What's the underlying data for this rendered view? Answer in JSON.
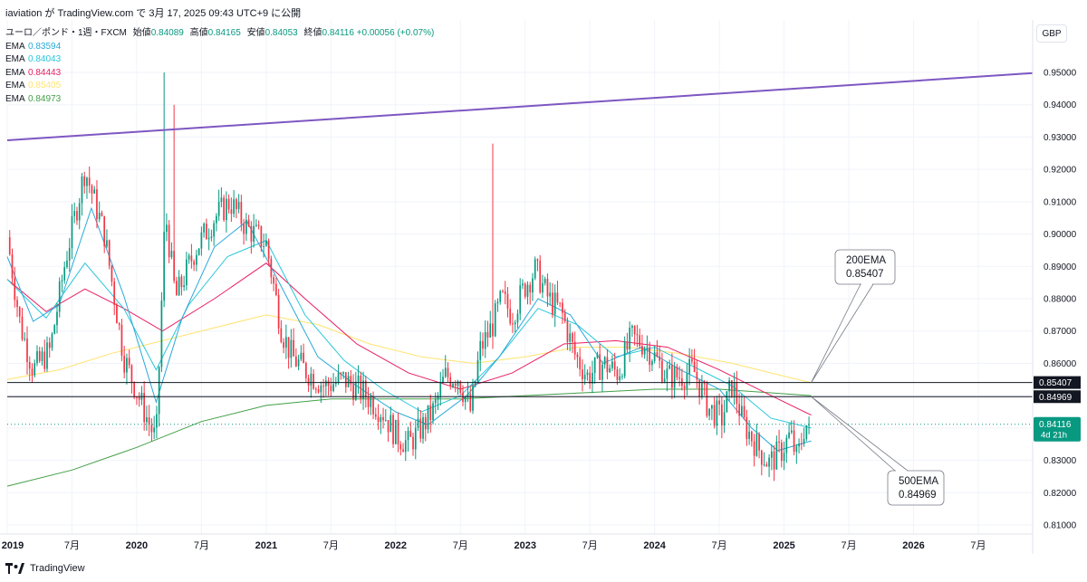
{
  "header": {
    "attribution": "iaviation が TradingView.com で 3月 17, 2025 09:43 UTC+9 に公開"
  },
  "legend": {
    "symbol": "ユーロ／ポンド・1週・FXCM",
    "ohlc": [
      {
        "label": "始値",
        "value": "0.84089"
      },
      {
        "label": "高値",
        "value": "0.84165"
      },
      {
        "label": "安値",
        "value": "0.84053"
      },
      {
        "label": "終値",
        "value": "0.84116"
      }
    ],
    "change": "+0.00056 (+0.07%)",
    "emas": [
      {
        "label": "EMA",
        "value": "0.83594",
        "color": "#29a9d9"
      },
      {
        "label": "EMA",
        "value": "0.84043",
        "color": "#26c6da"
      },
      {
        "label": "EMA",
        "value": "0.84443",
        "color": "#e91e63"
      },
      {
        "label": "EMA",
        "value": "0.85405",
        "color": "#ffe36e"
      },
      {
        "label": "EMA",
        "value": "0.84973",
        "color": "#43a047"
      }
    ]
  },
  "currency": "GBP",
  "footer": {
    "brand": "TradingView"
  },
  "colors": {
    "up": "#089981",
    "down": "#f23645",
    "trendline": "#7e57c2",
    "ema20": "#29a9d9",
    "ema50": "#26c6da",
    "ema100": "#e91e63",
    "ema200": "#ffe36e",
    "ema500": "#43a047",
    "level": "#131722"
  },
  "chart_data": {
    "type": "candlestick",
    "interval": "1週",
    "yaxis": {
      "min": 0.805,
      "max": 0.96,
      "ticks": [
        "0.81000",
        "0.82000",
        "0.83000",
        "0.84000",
        "0.85000",
        "0.86000",
        "0.87000",
        "0.88000",
        "0.89000",
        "0.90000",
        "0.91000",
        "0.92000",
        "0.93000",
        "0.94000",
        "0.95000"
      ]
    },
    "xaxis": {
      "start": 2019.0,
      "end": 2027.0,
      "ticks": [
        {
          "t": 2019.0,
          "label": "2019"
        },
        {
          "t": 2019.5,
          "label": "7月"
        },
        {
          "t": 2020.0,
          "label": "2020"
        },
        {
          "t": 2020.5,
          "label": "7月"
        },
        {
          "t": 2021.0,
          "label": "2021"
        },
        {
          "t": 2021.5,
          "label": "7月"
        },
        {
          "t": 2022.0,
          "label": "2022"
        },
        {
          "t": 2022.5,
          "label": "7月"
        },
        {
          "t": 2023.0,
          "label": "2023"
        },
        {
          "t": 2023.5,
          "label": "7月"
        },
        {
          "t": 2024.0,
          "label": "2024"
        },
        {
          "t": 2024.5,
          "label": "7月"
        },
        {
          "t": 2025.0,
          "label": "2025"
        },
        {
          "t": 2025.5,
          "label": "7月"
        },
        {
          "t": 2026.0,
          "label": "2026"
        },
        {
          "t": 2026.5,
          "label": "7月"
        }
      ]
    },
    "close_path": [
      [
        2019.0,
        0.899
      ],
      [
        2019.1,
        0.872
      ],
      [
        2019.2,
        0.858
      ],
      [
        2019.33,
        0.864
      ],
      [
        2019.45,
        0.892
      ],
      [
        2019.6,
        0.92
      ],
      [
        2019.75,
        0.9
      ],
      [
        2019.9,
        0.862
      ],
      [
        2020.05,
        0.846
      ],
      [
        2020.15,
        0.836
      ],
      [
        2020.22,
        0.907
      ],
      [
        2020.3,
        0.88
      ],
      [
        2020.45,
        0.895
      ],
      [
        2020.6,
        0.905
      ],
      [
        2020.72,
        0.91
      ],
      [
        2020.85,
        0.902
      ],
      [
        2021.0,
        0.897
      ],
      [
        2021.12,
        0.87
      ],
      [
        2021.2,
        0.862
      ],
      [
        2021.3,
        0.858
      ],
      [
        2021.45,
        0.853
      ],
      [
        2021.6,
        0.855
      ],
      [
        2021.75,
        0.851
      ],
      [
        2021.9,
        0.845
      ],
      [
        2022.0,
        0.838
      ],
      [
        2022.1,
        0.835
      ],
      [
        2022.2,
        0.84
      ],
      [
        2022.3,
        0.846
      ],
      [
        2022.38,
        0.856
      ],
      [
        2022.48,
        0.856
      ],
      [
        2022.58,
        0.845
      ],
      [
        2022.65,
        0.864
      ],
      [
        2022.75,
        0.872
      ],
      [
        2022.82,
        0.88
      ],
      [
        2022.9,
        0.875
      ],
      [
        2023.0,
        0.884
      ],
      [
        2023.08,
        0.889
      ],
      [
        2023.18,
        0.88
      ],
      [
        2023.28,
        0.876
      ],
      [
        2023.38,
        0.863
      ],
      [
        2023.48,
        0.856
      ],
      [
        2023.6,
        0.86
      ],
      [
        2023.72,
        0.857
      ],
      [
        2023.82,
        0.868
      ],
      [
        2023.92,
        0.866
      ],
      [
        2024.0,
        0.862
      ],
      [
        2024.1,
        0.856
      ],
      [
        2024.2,
        0.856
      ],
      [
        2024.3,
        0.858
      ],
      [
        2024.42,
        0.846
      ],
      [
        2024.52,
        0.843
      ],
      [
        2024.6,
        0.854
      ],
      [
        2024.68,
        0.842
      ],
      [
        2024.78,
        0.835
      ],
      [
        2024.88,
        0.829
      ],
      [
        2024.98,
        0.833
      ],
      [
        2025.05,
        0.838
      ],
      [
        2025.1,
        0.83
      ],
      [
        2025.16,
        0.841
      ],
      [
        2025.21,
        0.841
      ]
    ],
    "ohlc_last": {
      "open": 0.84089,
      "high": 0.84165,
      "low": 0.84053,
      "close": 0.84116
    },
    "spikes": [
      [
        2020.22,
        0.95
      ],
      [
        2022.75,
        0.928
      ],
      [
        2020.28,
        0.94
      ]
    ],
    "trendline": {
      "from": [
        2019.0,
        0.929
      ],
      "to": [
        2027.0,
        0.95
      ]
    },
    "ema_paths": {
      "ema200": [
        [
          2019.0,
          0.855
        ],
        [
          2019.4,
          0.858
        ],
        [
          2019.8,
          0.863
        ],
        [
          2020.2,
          0.867
        ],
        [
          2020.6,
          0.871
        ],
        [
          2021.0,
          0.875
        ],
        [
          2021.4,
          0.872
        ],
        [
          2021.8,
          0.866
        ],
        [
          2022.2,
          0.862
        ],
        [
          2022.6,
          0.86
        ],
        [
          2023.0,
          0.862
        ],
        [
          2023.4,
          0.865
        ],
        [
          2023.8,
          0.865
        ],
        [
          2024.2,
          0.863
        ],
        [
          2024.6,
          0.86
        ],
        [
          2024.9,
          0.857
        ],
        [
          2025.21,
          0.854
        ]
      ],
      "ema500": [
        [
          2019.0,
          0.822
        ],
        [
          2019.5,
          0.827
        ],
        [
          2020.0,
          0.834
        ],
        [
          2020.5,
          0.842
        ],
        [
          2021.0,
          0.847
        ],
        [
          2021.5,
          0.849
        ],
        [
          2022.0,
          0.849
        ],
        [
          2022.5,
          0.849
        ],
        [
          2023.0,
          0.85
        ],
        [
          2023.5,
          0.851
        ],
        [
          2024.0,
          0.852
        ],
        [
          2024.5,
          0.852
        ],
        [
          2025.21,
          0.85
        ]
      ],
      "ema100": [
        [
          2019.0,
          0.886
        ],
        [
          2019.3,
          0.876
        ],
        [
          2019.6,
          0.883
        ],
        [
          2019.9,
          0.877
        ],
        [
          2020.2,
          0.87
        ],
        [
          2020.6,
          0.88
        ],
        [
          2021.0,
          0.891
        ],
        [
          2021.3,
          0.88
        ],
        [
          2021.7,
          0.866
        ],
        [
          2022.1,
          0.857
        ],
        [
          2022.5,
          0.852
        ],
        [
          2022.9,
          0.857
        ],
        [
          2023.3,
          0.866
        ],
        [
          2023.7,
          0.867
        ],
        [
          2024.1,
          0.865
        ],
        [
          2024.5,
          0.858
        ],
        [
          2024.9,
          0.85
        ],
        [
          2025.21,
          0.844
        ]
      ],
      "ema50": [
        [
          2019.0,
          0.886
        ],
        [
          2019.3,
          0.874
        ],
        [
          2019.6,
          0.891
        ],
        [
          2019.9,
          0.877
        ],
        [
          2020.15,
          0.858
        ],
        [
          2020.4,
          0.878
        ],
        [
          2020.7,
          0.893
        ],
        [
          2021.0,
          0.898
        ],
        [
          2021.3,
          0.875
        ],
        [
          2021.6,
          0.861
        ],
        [
          2021.9,
          0.852
        ],
        [
          2022.2,
          0.845
        ],
        [
          2022.5,
          0.85
        ],
        [
          2022.8,
          0.862
        ],
        [
          2023.1,
          0.877
        ],
        [
          2023.4,
          0.872
        ],
        [
          2023.7,
          0.862
        ],
        [
          2024.0,
          0.865
        ],
        [
          2024.3,
          0.859
        ],
        [
          2024.6,
          0.853
        ],
        [
          2024.9,
          0.843
        ],
        [
          2025.21,
          0.84
        ]
      ],
      "ema20": [
        [
          2019.0,
          0.893
        ],
        [
          2019.2,
          0.873
        ],
        [
          2019.4,
          0.878
        ],
        [
          2019.65,
          0.908
        ],
        [
          2019.9,
          0.881
        ],
        [
          2020.15,
          0.848
        ],
        [
          2020.35,
          0.874
        ],
        [
          2020.6,
          0.896
        ],
        [
          2020.85,
          0.904
        ],
        [
          2021.1,
          0.885
        ],
        [
          2021.4,
          0.862
        ],
        [
          2021.7,
          0.853
        ],
        [
          2022.0,
          0.845
        ],
        [
          2022.25,
          0.841
        ],
        [
          2022.55,
          0.85
        ],
        [
          2022.8,
          0.862
        ],
        [
          2023.1,
          0.88
        ],
        [
          2023.35,
          0.875
        ],
        [
          2023.6,
          0.86
        ],
        [
          2023.9,
          0.865
        ],
        [
          2024.2,
          0.858
        ],
        [
          2024.5,
          0.852
        ],
        [
          2024.75,
          0.84
        ],
        [
          2024.95,
          0.833
        ],
        [
          2025.21,
          0.836
        ]
      ]
    },
    "levels": [
      {
        "value": 0.85407,
        "label": "0.85407"
      },
      {
        "value": 0.84969,
        "label": "0.84969"
      }
    ],
    "current_price": {
      "value": 0.84116,
      "label": "0.84116",
      "countdown": "4d 21h"
    },
    "callouts": [
      {
        "title": "200EMA",
        "value": "0.85407",
        "target": [
          2025.21,
          0.85407
        ]
      },
      {
        "title": "500EMA",
        "value": "0.84969",
        "target": [
          2025.21,
          0.84969
        ]
      }
    ]
  }
}
